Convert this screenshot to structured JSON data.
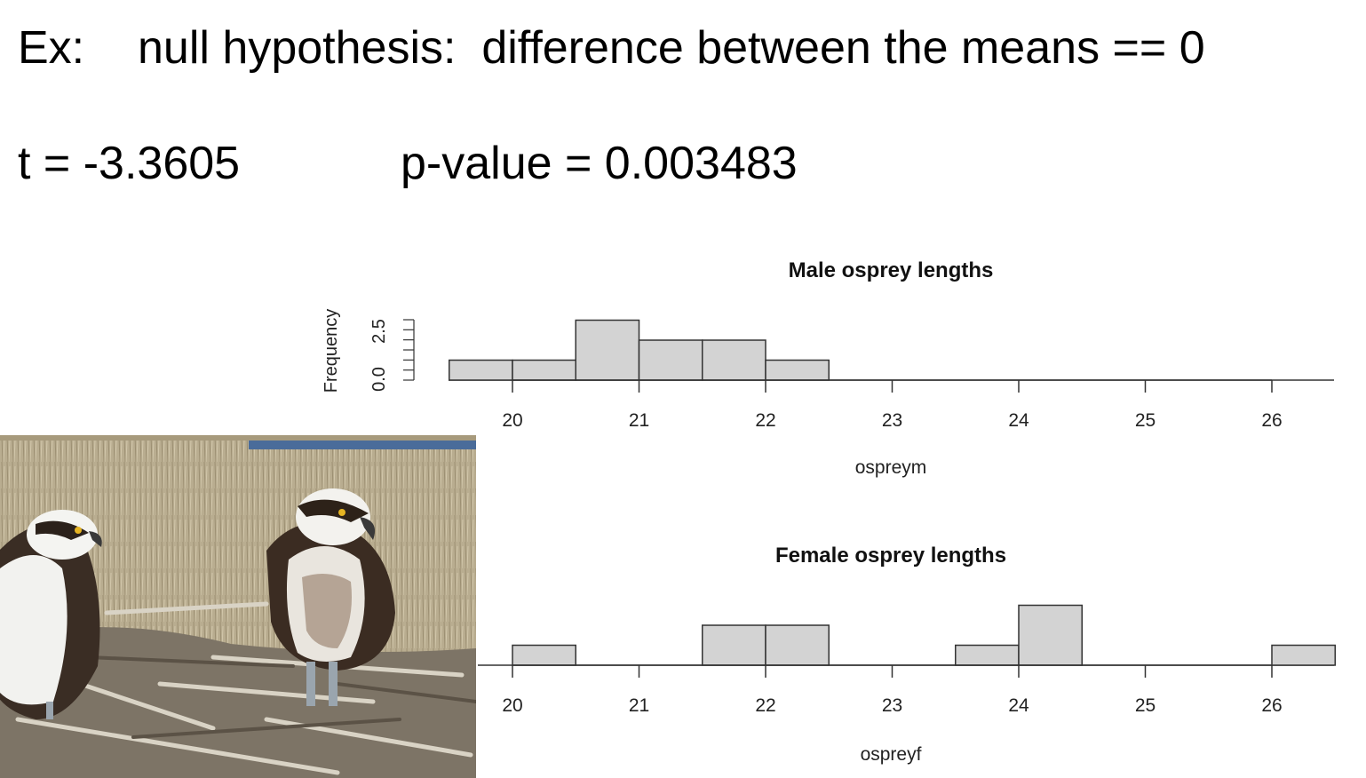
{
  "heading": {
    "prefix": "Ex:",
    "text": "null hypothesis:  difference between the means == 0"
  },
  "stats": {
    "t": "t = -3.3605",
    "p": "p-value = 0.003483"
  },
  "photo": {
    "alt": "two ospreys standing on a nest of sticks in front of dry marsh grass"
  },
  "chart_data": [
    {
      "type": "bar",
      "title": "Male osprey lengths",
      "xlabel": "ospreym",
      "ylabel": "Frequency",
      "bin_width": 0.5,
      "bins": [
        {
          "start": 19.5,
          "end": 20.0,
          "count": 1
        },
        {
          "start": 20.0,
          "end": 20.5,
          "count": 1
        },
        {
          "start": 20.5,
          "end": 21.0,
          "count": 3
        },
        {
          "start": 21.0,
          "end": 21.5,
          "count": 2
        },
        {
          "start": 21.5,
          "end": 22.0,
          "count": 2
        },
        {
          "start": 22.0,
          "end": 22.5,
          "count": 1
        }
      ],
      "xlim": [
        19.5,
        26.5
      ],
      "ylim": [
        0,
        3
      ],
      "xticks": [
        "20",
        "21",
        "22",
        "23",
        "24",
        "25",
        "26"
      ],
      "yticks": [
        "0.0",
        "2.5"
      ],
      "grid": false
    },
    {
      "type": "bar",
      "title": "Female osprey lengths",
      "xlabel": "ospreyf",
      "bin_width": 0.5,
      "bins": [
        {
          "start": 20.0,
          "end": 20.5,
          "count": 1
        },
        {
          "start": 21.5,
          "end": 22.0,
          "count": 2
        },
        {
          "start": 22.0,
          "end": 22.5,
          "count": 2
        },
        {
          "start": 23.5,
          "end": 24.0,
          "count": 1
        },
        {
          "start": 24.0,
          "end": 24.5,
          "count": 3
        },
        {
          "start": 26.0,
          "end": 26.5,
          "count": 1
        }
      ],
      "xlim": [
        19.5,
        26.5
      ],
      "ylim": [
        0,
        3
      ],
      "xticks": [
        "20",
        "21",
        "22",
        "23",
        "24",
        "25",
        "26"
      ],
      "grid": false
    }
  ],
  "colors": {
    "bar_fill": "#d3d3d3",
    "bar_stroke": "#333333",
    "marsh": "#b8ab8d",
    "water": "#4a6c9a",
    "nest": "#7d7466"
  }
}
